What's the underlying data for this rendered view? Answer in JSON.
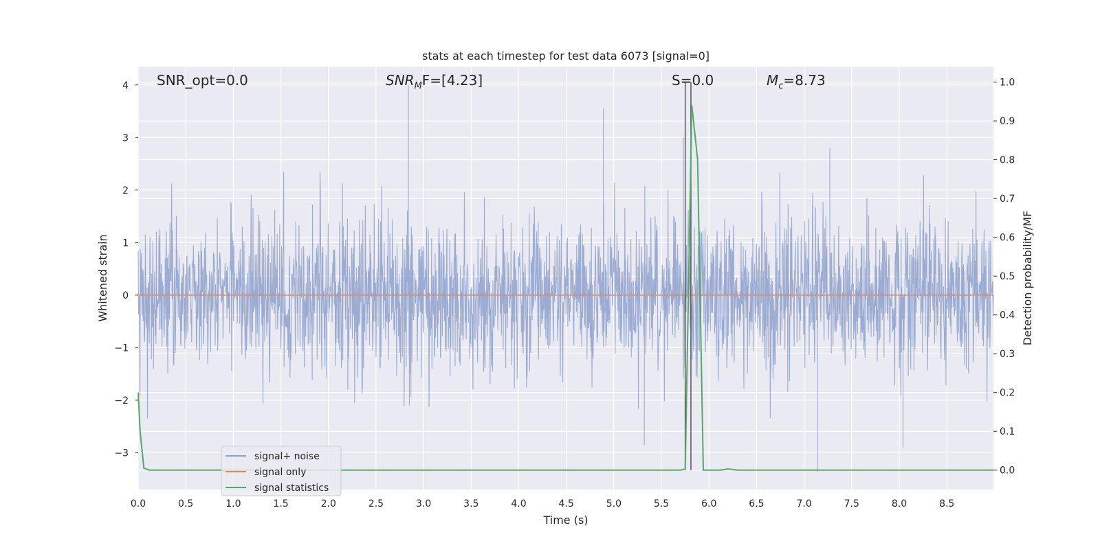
{
  "chart_data": {
    "type": "line",
    "title": "stats at each timestep for test data 6073 [signal=0]",
    "xlabel": "Time (s)",
    "ylabel_left": "Whitened strain",
    "ylabel_right": "Detection probability/MF",
    "xlim": [
      0.0,
      8.99
    ],
    "ylim_left": [
      -3.7,
      4.35
    ],
    "ylim_right": [
      -0.05,
      1.04
    ],
    "xticks": [
      0.0,
      0.5,
      1.0,
      1.5,
      2.0,
      2.5,
      3.0,
      3.5,
      4.0,
      4.5,
      5.0,
      5.5,
      6.0,
      6.5,
      7.0,
      7.5,
      8.0,
      8.5
    ],
    "xtick_labels": [
      "0.0",
      "0.5",
      "1.0",
      "1.5",
      "2.0",
      "2.5",
      "3.0",
      "3.5",
      "4.0",
      "4.5",
      "5.0",
      "5.5",
      "6.0",
      "6.5",
      "7.0",
      "7.5",
      "8.0",
      "8.5"
    ],
    "yticks_left": [
      -3,
      -2,
      -1,
      0,
      1,
      2,
      3,
      4
    ],
    "ytick_labels_left": [
      "−3",
      "−2",
      "−1",
      "0",
      "1",
      "2",
      "3",
      "4"
    ],
    "yticks_right": [
      0.0,
      0.1,
      0.2,
      0.3,
      0.4,
      0.5,
      0.6,
      0.7,
      0.8,
      0.9,
      1.0
    ],
    "ytick_labels_right": [
      "0.0",
      "0.1",
      "0.2",
      "0.3",
      "0.4",
      "0.5",
      "0.6",
      "0.7",
      "0.8",
      "0.9",
      "1.0"
    ],
    "grid": true,
    "legend_position": "lower-left",
    "annotations": {
      "snr_opt": "SNR_opt=0.0",
      "snr_mf_base": "SNR",
      "snr_mf_sub": "M",
      "snr_mf_rest": "F=[4.23]",
      "s_label": "S=0.0",
      "mc_base": "M",
      "mc_sub": "c",
      "mc_rest": "=8.73"
    },
    "series": [
      {
        "name": "signal+ noise",
        "color": "#8da0cb",
        "axis": "left",
        "description_type": "noise",
        "x_range": [
          0.0,
          8.99
        ],
        "peaks": [
          {
            "x": 2.84,
            "y": 4.0
          },
          {
            "x": 4.89,
            "y": 3.55
          },
          {
            "x": 5.73,
            "y": 3.0
          },
          {
            "x": 7.27,
            "y": 2.8
          },
          {
            "x": 2.85,
            "y": -2.1
          },
          {
            "x": 7.14,
            "y": -3.35
          },
          {
            "x": 5.32,
            "y": -2.85
          },
          {
            "x": 8.04,
            "y": -2.9
          }
        ]
      },
      {
        "name": "signal only",
        "color": "#dd8452",
        "axis": "left",
        "x": [
          0.0,
          8.99
        ],
        "y": [
          0.0,
          0.0
        ]
      },
      {
        "name": "signal statistics",
        "color": "#55a868",
        "axis": "right",
        "x": [
          0.0,
          0.02,
          0.06,
          0.12,
          5.7,
          5.75,
          5.82,
          5.88,
          5.94,
          6.0,
          6.12,
          6.2,
          6.3,
          8.99
        ],
        "y": [
          0.2,
          0.1,
          0.005,
          0.0,
          0.0,
          0.003,
          0.94,
          0.8,
          0.0,
          0.0,
          0.0,
          0.003,
          0.0,
          0.0
        ]
      }
    ],
    "vlines": [
      {
        "x": 5.75,
        "color": "#555555"
      },
      {
        "x": 5.81,
        "color": "#555555"
      }
    ]
  }
}
